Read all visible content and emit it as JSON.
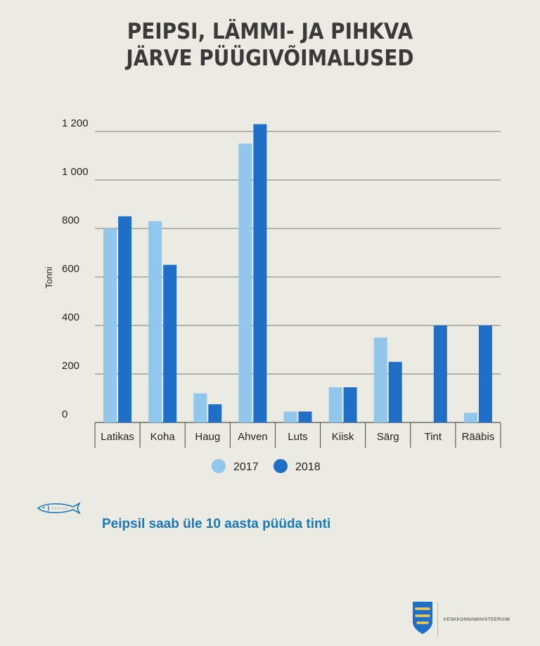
{
  "title_line1": "PEIPSI, LÄMMI- JA PIHKVA",
  "title_line2": "JÄRVE PÜÜGIVÕIMALUSED",
  "tagline": "Peipsil saab üle 10 aasta püüda tinti",
  "logo_text": "Keskkonnaministeerium",
  "chart_data": {
    "type": "bar",
    "title": "PEIPSI, LÄMMI- JA PIHKVA JÄRVE PÜÜGIVÕIMALUSED",
    "ylabel": "Tonni",
    "xlabel": "",
    "ylim": [
      0,
      1200
    ],
    "yticks": [
      0,
      200,
      400,
      600,
      800,
      1000,
      1200
    ],
    "ytick_labels": [
      "0",
      "200",
      "400",
      "600",
      "800",
      "1 000",
      "1 200"
    ],
    "grid": true,
    "legend_position": "bottom",
    "categories": [
      "Latikas",
      "Koha",
      "Haug",
      "Ahven",
      "Luts",
      "Kiisk",
      "Särg",
      "Tint",
      "Rääbis"
    ],
    "series": [
      {
        "name": "2017",
        "color": "#90c7ea",
        "values": [
          800,
          830,
          120,
          1150,
          45,
          145,
          350,
          0,
          40
        ]
      },
      {
        "name": "2018",
        "color": "#1f6fc6",
        "values": [
          850,
          650,
          75,
          1230,
          45,
          145,
          250,
          400,
          400
        ]
      }
    ]
  }
}
